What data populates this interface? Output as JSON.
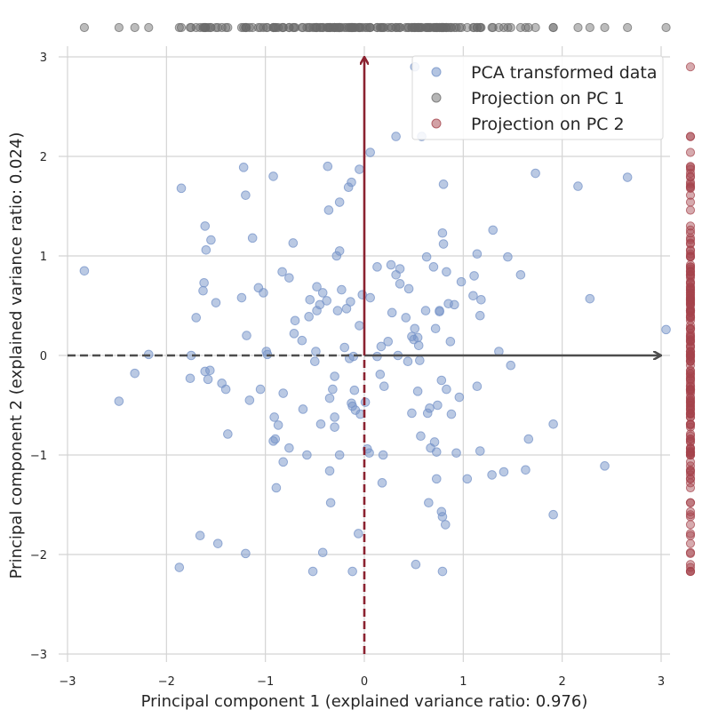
{
  "chart_data": {
    "type": "scatter",
    "title": "",
    "xlabel": "Principal component 1 (explained variance ratio: 0.976)",
    "ylabel": "Principal component 2 (explained variance ratio: 0.024)",
    "xlim": [
      -3.1,
      3.1
    ],
    "ylim": [
      -3.05,
      3.05
    ],
    "xticks": [
      -3,
      -2,
      -1,
      0,
      1,
      2,
      3
    ],
    "yticks": [
      -3,
      -2,
      -1,
      0,
      1,
      2,
      3
    ],
    "xtick_labels": [
      "−3",
      "−2",
      "−1",
      "0",
      "1",
      "2",
      "3"
    ],
    "ytick_labels": [
      "−3",
      "−2",
      "−1",
      "0",
      "1",
      "2",
      "3"
    ],
    "grid": true,
    "legend_position": "top-right",
    "colors": {
      "data": "#7593c8",
      "pc1": "#6b6b6b",
      "pc2": "#a5434c",
      "arrow_pc1": "#4d4d4d",
      "arrow_pc2": "#8b2230",
      "grid": "#d4d4d4"
    },
    "arrows": {
      "pc1": {
        "from": [
          0,
          0
        ],
        "to": [
          3.0,
          0
        ],
        "dashed_extent": [
          -3.0,
          0
        ]
      },
      "pc2": {
        "from": [
          0,
          0
        ],
        "to": [
          0,
          3.0
        ],
        "dashed_extent": [
          -3.0,
          0
        ]
      }
    },
    "series": [
      {
        "name": "PCA transformed data",
        "points": [
          [
            -2.83,
            0.85
          ],
          [
            -2.48,
            -0.46
          ],
          [
            -2.32,
            -0.18
          ],
          [
            -2.18,
            0.01
          ],
          [
            -1.85,
            1.68
          ],
          [
            -1.87,
            -2.13
          ],
          [
            -1.76,
            -0.23
          ],
          [
            -1.7,
            0.38
          ],
          [
            -1.66,
            -1.81
          ],
          [
            -1.63,
            0.65
          ],
          [
            -1.62,
            0.73
          ],
          [
            -1.61,
            1.3
          ],
          [
            -1.6,
            1.06
          ],
          [
            -1.61,
            -0.16
          ],
          [
            -1.58,
            -0.24
          ],
          [
            -1.55,
            1.16
          ],
          [
            -1.56,
            -0.15
          ],
          [
            -1.5,
            0.53
          ],
          [
            -1.48,
            -1.89
          ],
          [
            -1.44,
            -0.28
          ],
          [
            -1.4,
            -0.34
          ],
          [
            -1.38,
            -0.79
          ],
          [
            -1.24,
            0.58
          ],
          [
            -1.22,
            1.89
          ],
          [
            -1.2,
            1.61
          ],
          [
            -1.19,
            0.2
          ],
          [
            -1.2,
            -1.99
          ],
          [
            -1.16,
            -0.45
          ],
          [
            -1.13,
            1.18
          ],
          [
            -1.07,
            0.68
          ],
          [
            -1.05,
            -0.34
          ],
          [
            -1.02,
            0.63
          ],
          [
            -0.99,
            0.04
          ],
          [
            -0.98,
            0.01
          ],
          [
            -0.92,
            1.8
          ],
          [
            -0.92,
            -0.86
          ],
          [
            -0.91,
            -0.62
          ],
          [
            -0.9,
            -0.84
          ],
          [
            -0.89,
            -1.33
          ],
          [
            -0.87,
            -0.7
          ],
          [
            -0.83,
            0.84
          ],
          [
            -0.82,
            -0.38
          ],
          [
            -0.82,
            -1.07
          ],
          [
            -0.76,
            0.78
          ],
          [
            -0.76,
            -0.93
          ],
          [
            -0.72,
            1.13
          ],
          [
            -0.71,
            0.22
          ],
          [
            -0.7,
            0.35
          ],
          [
            -0.63,
            0.15
          ],
          [
            -0.62,
            -0.54
          ],
          [
            -0.58,
            -1.0
          ],
          [
            -0.56,
            0.39
          ],
          [
            -0.55,
            0.56
          ],
          [
            -0.52,
            -2.17
          ],
          [
            -0.5,
            -0.06
          ],
          [
            -0.49,
            0.04
          ],
          [
            -0.48,
            0.45
          ],
          [
            -0.48,
            0.69
          ],
          [
            -0.45,
            0.51
          ],
          [
            -0.44,
            -0.69
          ],
          [
            -0.42,
            -1.98
          ],
          [
            -0.42,
            0.63
          ],
          [
            -0.38,
            0.55
          ],
          [
            -0.37,
            1.9
          ],
          [
            -0.36,
            1.46
          ],
          [
            -0.35,
            -0.43
          ],
          [
            -0.35,
            -1.16
          ],
          [
            -0.34,
            -1.48
          ],
          [
            -0.32,
            -0.34
          ],
          [
            -0.3,
            -0.62
          ],
          [
            -0.3,
            -0.72
          ],
          [
            -0.3,
            -0.21
          ],
          [
            -0.28,
            1.0
          ],
          [
            -0.27,
            0.45
          ],
          [
            -0.25,
            -1.0
          ],
          [
            -0.25,
            1.54
          ],
          [
            -0.25,
            1.05
          ],
          [
            -0.23,
            0.66
          ],
          [
            -0.2,
            0.08
          ],
          [
            -0.18,
            0.47
          ],
          [
            -0.16,
            1.69
          ],
          [
            -0.15,
            -0.03
          ],
          [
            -0.14,
            0.54
          ],
          [
            -0.13,
            1.74
          ],
          [
            -0.13,
            -0.48
          ],
          [
            -0.12,
            -0.51
          ],
          [
            -0.12,
            -2.17
          ],
          [
            -0.11,
            -0.01
          ],
          [
            -0.1,
            -0.35
          ],
          [
            -0.09,
            -0.55
          ],
          [
            -0.06,
            -1.79
          ],
          [
            -0.05,
            1.87
          ],
          [
            -0.05,
            0.3
          ],
          [
            -0.04,
            -0.59
          ],
          [
            -0.02,
            0.61
          ],
          [
            0.01,
            -0.47
          ],
          [
            0.03,
            -0.94
          ],
          [
            0.05,
            -0.98
          ],
          [
            0.06,
            2.04
          ],
          [
            0.06,
            0.58
          ],
          [
            0.13,
            0.89
          ],
          [
            0.13,
            -0.01
          ],
          [
            0.16,
            -0.19
          ],
          [
            0.17,
            0.09
          ],
          [
            0.18,
            -1.28
          ],
          [
            0.19,
            -1.0
          ],
          [
            0.2,
            -0.31
          ],
          [
            0.24,
            0.14
          ],
          [
            0.27,
            0.91
          ],
          [
            0.28,
            0.43
          ],
          [
            0.32,
            0.81
          ],
          [
            0.32,
            2.2
          ],
          [
            0.34,
            0.0
          ],
          [
            0.36,
            0.87
          ],
          [
            0.36,
            0.72
          ],
          [
            0.42,
            0.38
          ],
          [
            0.44,
            -0.06
          ],
          [
            0.45,
            0.67
          ],
          [
            0.48,
            -0.58
          ],
          [
            0.5,
            0.16
          ],
          [
            0.51,
            0.27
          ],
          [
            0.51,
            2.9
          ],
          [
            0.52,
            -2.1
          ],
          [
            0.54,
            -0.36
          ],
          [
            0.54,
            0.18
          ],
          [
            0.55,
            0.1
          ],
          [
            0.56,
            -0.05
          ],
          [
            0.57,
            -0.81
          ],
          [
            0.58,
            2.2
          ],
          [
            0.62,
            0.45
          ],
          [
            0.63,
            0.99
          ],
          [
            0.64,
            -0.58
          ],
          [
            0.65,
            -1.48
          ],
          [
            0.66,
            -0.53
          ],
          [
            0.67,
            -0.93
          ],
          [
            0.7,
            0.89
          ],
          [
            0.71,
            -0.87
          ],
          [
            0.72,
            0.27
          ],
          [
            0.73,
            -0.97
          ],
          [
            0.73,
            -1.24
          ],
          [
            0.74,
            -0.5
          ],
          [
            0.76,
            0.44
          ],
          [
            0.78,
            -0.25
          ],
          [
            0.78,
            -1.57
          ],
          [
            0.79,
            -1.62
          ],
          [
            0.79,
            -2.17
          ],
          [
            0.79,
            1.23
          ],
          [
            0.8,
            1.12
          ],
          [
            0.8,
            1.72
          ],
          [
            0.82,
            -1.7
          ],
          [
            0.83,
            0.84
          ],
          [
            0.83,
            -0.34
          ],
          [
            0.85,
            0.52
          ],
          [
            0.87,
            0.14
          ],
          [
            0.88,
            -0.59
          ],
          [
            0.91,
            0.51
          ],
          [
            0.93,
            -0.98
          ],
          [
            0.96,
            -0.42
          ],
          [
            0.98,
            0.74
          ],
          [
            1.04,
            -1.24
          ],
          [
            1.1,
            0.6
          ],
          [
            1.11,
            0.8
          ],
          [
            1.14,
            1.02
          ],
          [
            1.14,
            -0.31
          ],
          [
            1.17,
            0.4
          ],
          [
            1.18,
            0.56
          ],
          [
            1.17,
            -0.96
          ],
          [
            1.29,
            -1.2
          ],
          [
            1.3,
            1.26
          ],
          [
            1.36,
            0.04
          ],
          [
            1.41,
            -1.17
          ],
          [
            1.45,
            0.99
          ],
          [
            1.48,
            -0.1
          ],
          [
            1.58,
            0.81
          ],
          [
            1.63,
            -1.15
          ],
          [
            1.66,
            -0.84
          ],
          [
            1.73,
            1.83
          ],
          [
            1.91,
            -1.6
          ],
          [
            1.91,
            -0.69
          ],
          [
            2.16,
            1.7
          ],
          [
            2.28,
            0.57
          ],
          [
            2.43,
            -1.11
          ],
          [
            2.66,
            1.79
          ],
          [
            3.05,
            0.26
          ],
          [
            -1.75,
            0.0
          ],
          [
            0.76,
            0.45
          ],
          [
            0.48,
            0.19
          ]
        ]
      },
      {
        "name": "Projection on PC 1"
      },
      {
        "name": "Projection on PC 2"
      }
    ]
  }
}
